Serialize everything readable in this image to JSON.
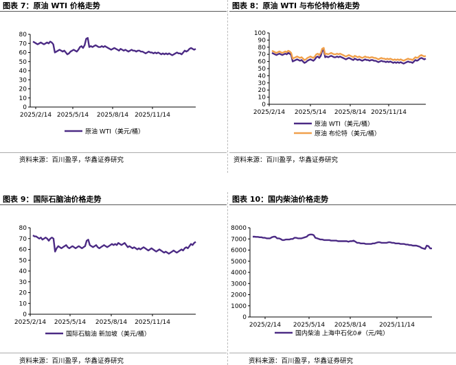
{
  "colors": {
    "purple": "#4B2A84",
    "orange": "#F0A04B",
    "axis": "#000000",
    "rule": "#555555"
  },
  "panels": [
    {
      "title": "图表 7：原油 WTI 价格走势",
      "source": "资料来源：百川盈孚，华鑫证券研究"
    },
    {
      "title": "图表 8：原油 WTI 与布伦特价格走势",
      "source": "资料来源：百川盈孚，华鑫证券研究"
    },
    {
      "title": "图表 9：国际石脑油价格走势",
      "source": "资料来源：百川盈孚，华鑫证券研究"
    },
    {
      "title": "图表 10：国内柴油价格走势",
      "source": "资料来源：百川盈孚，华鑫证券研究"
    }
  ],
  "chart_data": [
    {
      "type": "line",
      "xlabels": [
        "2025/2/14",
        "2025/5/14",
        "2025/8/14",
        "2025/11/14"
      ],
      "yticks": [
        0,
        10,
        20,
        30,
        40,
        50,
        60,
        70,
        80
      ],
      "ylim": [
        0,
        80
      ],
      "legend": "bottom",
      "series": [
        {
          "name": "原油 WTI（美元/桶）",
          "color": "#4B2A84",
          "values": [
            72,
            71,
            70,
            69,
            70,
            71,
            70,
            69,
            70,
            71,
            70,
            72,
            71,
            69,
            60,
            61,
            62,
            63,
            62,
            61,
            62,
            60,
            58,
            59,
            61,
            62,
            63,
            62,
            61,
            63,
            66,
            67,
            65,
            68,
            75,
            76,
            66,
            67,
            66,
            67,
            68,
            67,
            66,
            66,
            67,
            66,
            67,
            66,
            65,
            64,
            63,
            64,
            65,
            64,
            63,
            62,
            64,
            63,
            62,
            63,
            62,
            61,
            62,
            63,
            62,
            62,
            61,
            62,
            62,
            61,
            61,
            60,
            59,
            60,
            61,
            60,
            60,
            59,
            60,
            59,
            60,
            59,
            58,
            59,
            58,
            59,
            58,
            59,
            58,
            57,
            58,
            59,
            60,
            59,
            59,
            58,
            60,
            62,
            61,
            62,
            64,
            65,
            64,
            63,
            64
          ]
        }
      ]
    },
    {
      "type": "line",
      "xlabels": [
        "2025/2/14",
        "2025/5/14",
        "2025/8/14",
        "2025/11/14"
      ],
      "yticks": [
        0,
        10,
        20,
        30,
        40,
        50,
        60,
        70,
        80,
        90,
        100
      ],
      "ylim": [
        0,
        100
      ],
      "legend": "bottom",
      "series": [
        {
          "name": "原油 WTI（美元/桶）",
          "color": "#4B2A84",
          "values": [
            72,
            71,
            70,
            69,
            70,
            71,
            70,
            69,
            70,
            71,
            70,
            72,
            71,
            69,
            60,
            61,
            62,
            63,
            62,
            61,
            62,
            60,
            58,
            59,
            61,
            62,
            63,
            62,
            61,
            63,
            66,
            67,
            65,
            68,
            75,
            76,
            66,
            67,
            66,
            67,
            68,
            67,
            66,
            66,
            67,
            66,
            67,
            66,
            65,
            64,
            63,
            64,
            65,
            64,
            63,
            62,
            64,
            63,
            62,
            63,
            62,
            61,
            62,
            63,
            62,
            62,
            61,
            62,
            62,
            61,
            61,
            60,
            59,
            60,
            61,
            60,
            60,
            59,
            60,
            59,
            60,
            59,
            58,
            59,
            58,
            59,
            58,
            59,
            58,
            57,
            58,
            59,
            60,
            59,
            59,
            58,
            60,
            62,
            61,
            62,
            64,
            65,
            64,
            63,
            64
          ]
        },
        {
          "name": "原油 布伦特（美元/桶）",
          "color": "#F0A04B",
          "values": [
            75,
            74,
            73,
            72,
            73,
            74,
            73,
            72,
            73,
            74,
            73,
            75,
            74,
            72,
            64,
            65,
            66,
            67,
            66,
            65,
            66,
            64,
            62,
            63,
            65,
            66,
            67,
            66,
            65,
            67,
            70,
            71,
            69,
            72,
            78,
            79,
            70,
            71,
            70,
            71,
            72,
            71,
            70,
            70,
            71,
            70,
            71,
            70,
            69,
            68,
            67,
            68,
            69,
            68,
            67,
            66,
            68,
            67,
            66,
            67,
            66,
            65,
            66,
            67,
            66,
            66,
            65,
            66,
            66,
            65,
            65,
            64,
            63,
            64,
            65,
            64,
            64,
            63,
            64,
            63,
            64,
            63,
            62,
            63,
            62,
            63,
            62,
            63,
            62,
            61,
            62,
            63,
            64,
            63,
            63,
            62,
            64,
            66,
            65,
            66,
            68,
            69,
            68,
            67,
            68
          ]
        }
      ]
    },
    {
      "type": "line",
      "xlabels": [
        "2025/2/14",
        "2025/5/14",
        "2025/8/14",
        "2025/11/14"
      ],
      "yticks": [
        0,
        10,
        20,
        30,
        40,
        50,
        60,
        70,
        80
      ],
      "ylim": [
        0,
        80
      ],
      "legend": "bottom",
      "series": [
        {
          "name": "国际石脑油 新加坡（美元/桶）",
          "color": "#4B2A84",
          "values": [
            73,
            72,
            72,
            71,
            70,
            71,
            69,
            70,
            71,
            70,
            68,
            70,
            71,
            70,
            58,
            61,
            63,
            62,
            61,
            62,
            63,
            64,
            62,
            61,
            62,
            63,
            62,
            61,
            62,
            63,
            62,
            61,
            62,
            63,
            68,
            69,
            64,
            63,
            62,
            63,
            64,
            62,
            61,
            62,
            63,
            64,
            63,
            62,
            63,
            64,
            65,
            64,
            65,
            64,
            66,
            65,
            64,
            65,
            66,
            64,
            62,
            63,
            62,
            61,
            62,
            61,
            60,
            61,
            60,
            61,
            62,
            61,
            60,
            59,
            60,
            61,
            60,
            59,
            58,
            59,
            60,
            59,
            58,
            57,
            58,
            57,
            56,
            57,
            58,
            59,
            58,
            57,
            58,
            59,
            60,
            59,
            61,
            62,
            61,
            63,
            65,
            64,
            66,
            67
          ]
        }
      ]
    },
    {
      "type": "line",
      "xlabels": [
        "2025/2/14",
        "2025/5/14",
        "2025/8/14",
        "2025/11/14"
      ],
      "yticks": [
        0,
        1000,
        2000,
        3000,
        4000,
        5000,
        6000,
        7000,
        8000
      ],
      "ylim": [
        0,
        8000
      ],
      "legend": "bottom",
      "series": [
        {
          "name": "国内柴油 上海中石化0#（元/吨）",
          "color": "#4B2A84",
          "values": [
            7200,
            7200,
            7180,
            7180,
            7150,
            7150,
            7100,
            7100,
            7050,
            7050,
            7050,
            7150,
            7200,
            7200,
            7050,
            7050,
            7000,
            6900,
            6900,
            6950,
            6950,
            6950,
            7000,
            7000,
            7100,
            7100,
            7050,
            7050,
            7050,
            7100,
            7150,
            7200,
            7350,
            7400,
            7400,
            7350,
            7100,
            7050,
            7000,
            6950,
            6950,
            6900,
            6900,
            6900,
            6900,
            6850,
            6850,
            6850,
            6850,
            6800,
            6800,
            6800,
            6800,
            6800,
            6800,
            6750,
            6800,
            6800,
            6850,
            6750,
            6650,
            6650,
            6600,
            6600,
            6600,
            6550,
            6550,
            6550,
            6550,
            6600,
            6600,
            6650,
            6700,
            6700,
            6650,
            6650,
            6650,
            6650,
            6700,
            6700,
            6650,
            6650,
            6600,
            6600,
            6600,
            6550,
            6550,
            6550,
            6500,
            6500,
            6450,
            6450,
            6400,
            6400,
            6400,
            6350,
            6300,
            6200,
            6150,
            6100,
            6400,
            6350,
            6150,
            6150
          ]
        }
      ]
    }
  ]
}
